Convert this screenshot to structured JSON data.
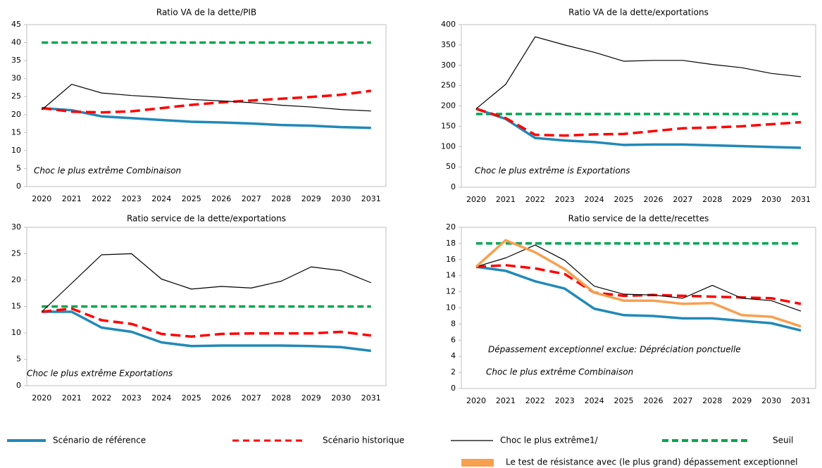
{
  "chart_data": [
    {
      "type": "line",
      "title": "Ratio VA de la dette/PIB",
      "categories": [
        "2020",
        "2021",
        "2022",
        "2023",
        "2024",
        "2025",
        "2026",
        "2027",
        "2028",
        "2029",
        "2030",
        "2031"
      ],
      "ylim": [
        0,
        45
      ],
      "yticks": [
        0,
        5,
        10,
        15,
        20,
        25,
        30,
        35,
        40,
        45
      ],
      "annotations": [
        "Choc le plus extrême Combinaison"
      ],
      "series": [
        {
          "name": "Scénario de référence",
          "color": "#2189b9",
          "line_style": "solid",
          "values": [
            21.8,
            21.2,
            19.5,
            19.0,
            18.5,
            18.0,
            17.8,
            17.5,
            17.1,
            16.9,
            16.5,
            16.3
          ]
        },
        {
          "name": "Scénario historique",
          "color": "#ff0000",
          "line_style": "dashed",
          "values": [
            21.8,
            20.8,
            20.6,
            20.9,
            21.8,
            22.7,
            23.4,
            23.9,
            24.4,
            24.9,
            25.5,
            26.6
          ]
        },
        {
          "name": "Choc le plus extrême1/",
          "color": "#000000",
          "line_style": "thin",
          "values": [
            21.3,
            28.4,
            26.0,
            25.3,
            24.8,
            24.2,
            23.8,
            23.3,
            22.6,
            22.1,
            21.4,
            21.0
          ]
        },
        {
          "name": "Seuil",
          "color": "#00a651",
          "line_style": "dashed",
          "values": [
            40,
            40,
            40,
            40,
            40,
            40,
            40,
            40,
            40,
            40,
            40,
            40
          ]
        }
      ]
    },
    {
      "type": "line",
      "title": "Ratio VA de la dette/exportations",
      "categories": [
        "2020",
        "2021",
        "2022",
        "2023",
        "2024",
        "2025",
        "2026",
        "2027",
        "2028",
        "2029",
        "2030",
        "2031"
      ],
      "ylim": [
        0,
        400
      ],
      "yticks": [
        0,
        50,
        100,
        150,
        200,
        250,
        300,
        350,
        400
      ],
      "annotations": [
        "Choc le plus extrême is Exportations"
      ],
      "series": [
        {
          "name": "Scénario de référence",
          "color": "#2189b9",
          "line_style": "solid",
          "values": [
            193,
            168,
            121,
            115,
            111,
            104,
            105,
            105,
            103,
            101,
            99,
            97
          ]
        },
        {
          "name": "Scénario historique",
          "color": "#ff0000",
          "line_style": "dashed",
          "values": [
            193,
            170,
            129,
            127,
            130,
            131,
            138,
            145,
            147,
            150,
            155,
            160
          ]
        },
        {
          "name": "Choc le plus extrême1/",
          "color": "#000000",
          "line_style": "thin",
          "values": [
            193,
            253,
            370,
            350,
            332,
            310,
            312,
            312,
            302,
            294,
            280,
            272
          ]
        },
        {
          "name": "Seuil",
          "color": "#00a651",
          "line_style": "dashed",
          "values": [
            180,
            180,
            180,
            180,
            180,
            180,
            180,
            180,
            180,
            180,
            180,
            180
          ]
        }
      ]
    },
    {
      "type": "line",
      "title": "Ratio service de la dette/exportations",
      "categories": [
        "2020",
        "2021",
        "2022",
        "2023",
        "2024",
        "2025",
        "2026",
        "2027",
        "2028",
        "2029",
        "2030",
        "2031"
      ],
      "ylim": [
        0,
        30
      ],
      "yticks": [
        0,
        5,
        10,
        15,
        20,
        25,
        30
      ],
      "annotations": [
        "Choc le plus extrême Exportations"
      ],
      "series": [
        {
          "name": "Scénario de référence",
          "color": "#2189b9",
          "line_style": "solid",
          "values": [
            14.0,
            14.0,
            11.0,
            10.2,
            8.2,
            7.5,
            7.6,
            7.6,
            7.6,
            7.5,
            7.3,
            6.6
          ]
        },
        {
          "name": "Scénario historique",
          "color": "#ff0000",
          "line_style": "dashed",
          "values": [
            14.0,
            14.6,
            12.4,
            11.7,
            9.8,
            9.3,
            9.8,
            9.9,
            9.9,
            9.9,
            10.2,
            9.5
          ]
        },
        {
          "name": "Choc le plus extrême1/",
          "color": "#000000",
          "line_style": "thin",
          "values": [
            14.0,
            19.4,
            24.8,
            25.0,
            20.2,
            18.3,
            18.8,
            18.5,
            19.8,
            22.5,
            21.8,
            19.5
          ]
        },
        {
          "name": "Seuil",
          "color": "#00a651",
          "line_style": "dashed",
          "values": [
            15,
            15,
            15,
            15,
            15,
            15,
            15,
            15,
            15,
            15,
            15,
            15
          ]
        }
      ]
    },
    {
      "type": "line",
      "title": "Ratio service de la dette/recettes",
      "categories": [
        "2020",
        "2021",
        "2022",
        "2023",
        "2024",
        "2025",
        "2026",
        "2027",
        "2028",
        "2029",
        "2030",
        "2031"
      ],
      "ylim": [
        0,
        20
      ],
      "yticks": [
        0,
        2,
        4,
        6,
        8,
        10,
        12,
        14,
        16,
        18,
        20
      ],
      "annotations": [
        "Dépassement  exceptionnel  exclue:  Dépréciation  ponctuelle",
        "Choc le plus extrême Combinaison"
      ],
      "series": [
        {
          "name": "Scénario de référence",
          "color": "#2189b9",
          "line_style": "solid",
          "values": [
            15.1,
            14.6,
            13.3,
            12.4,
            9.9,
            9.1,
            9.0,
            8.7,
            8.7,
            8.4,
            8.1,
            7.2
          ]
        },
        {
          "name": "Scénario historique",
          "color": "#ff0000",
          "line_style": "dashed",
          "values": [
            15.1,
            15.3,
            14.9,
            14.2,
            11.9,
            11.5,
            11.6,
            11.5,
            11.4,
            11.3,
            11.2,
            10.5
          ]
        },
        {
          "name": "Choc le plus extrême1/",
          "color": "#000000",
          "line_style": "thin",
          "values": [
            15.1,
            16.2,
            17.8,
            15.9,
            12.7,
            11.7,
            11.6,
            11.2,
            12.8,
            11.2,
            10.9,
            9.6
          ]
        },
        {
          "name": "Seuil",
          "color": "#00a651",
          "line_style": "dashed",
          "values": [
            18,
            18,
            18,
            18,
            18,
            18,
            18,
            18,
            18,
            18,
            18,
            18
          ]
        },
        {
          "name": "Le test de résistance avec (le plus grand) dépassement exceptionnel",
          "color": "#f7a050",
          "line_style": "solid",
          "values": [
            15.1,
            18.4,
            16.9,
            14.8,
            11.9,
            10.9,
            10.9,
            10.5,
            10.6,
            9.1,
            8.9,
            7.7
          ]
        }
      ]
    }
  ]
}
